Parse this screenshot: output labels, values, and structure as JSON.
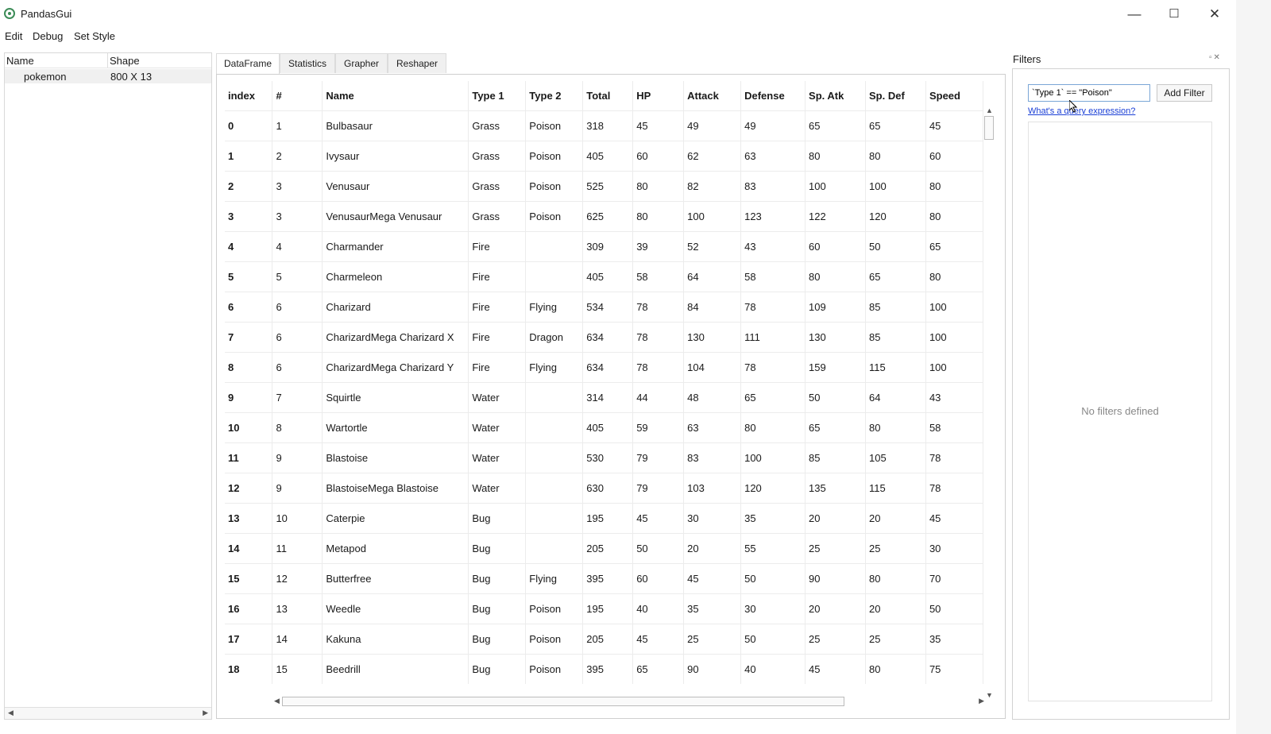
{
  "window": {
    "title": "PandasGui",
    "minimize": "—",
    "maximize": "☐",
    "close": "✕"
  },
  "menu": [
    "Edit",
    "Debug",
    "Set Style"
  ],
  "datasets": {
    "headers": [
      "Name",
      "Shape"
    ],
    "rows": [
      {
        "name": "pokemon",
        "shape": "800 X 13"
      }
    ]
  },
  "tabs": [
    "DataFrame",
    "Statistics",
    "Grapher",
    "Reshaper"
  ],
  "table": {
    "columns": [
      "index",
      "#",
      "Name",
      "Type 1",
      "Type 2",
      "Total",
      "HP",
      "Attack",
      "Defense",
      "Sp. Atk",
      "Sp. Def",
      "Speed"
    ],
    "rows": [
      [
        "0",
        "1",
        "Bulbasaur",
        "Grass",
        "Poison",
        "318",
        "45",
        "49",
        "49",
        "65",
        "65",
        "45"
      ],
      [
        "1",
        "2",
        "Ivysaur",
        "Grass",
        "Poison",
        "405",
        "60",
        "62",
        "63",
        "80",
        "80",
        "60"
      ],
      [
        "2",
        "3",
        "Venusaur",
        "Grass",
        "Poison",
        "525",
        "80",
        "82",
        "83",
        "100",
        "100",
        "80"
      ],
      [
        "3",
        "3",
        "VenusaurMega Venusaur",
        "Grass",
        "Poison",
        "625",
        "80",
        "100",
        "123",
        "122",
        "120",
        "80"
      ],
      [
        "4",
        "4",
        "Charmander",
        "Fire",
        "",
        "309",
        "39",
        "52",
        "43",
        "60",
        "50",
        "65"
      ],
      [
        "5",
        "5",
        "Charmeleon",
        "Fire",
        "",
        "405",
        "58",
        "64",
        "58",
        "80",
        "65",
        "80"
      ],
      [
        "6",
        "6",
        "Charizard",
        "Fire",
        "Flying",
        "534",
        "78",
        "84",
        "78",
        "109",
        "85",
        "100"
      ],
      [
        "7",
        "6",
        "CharizardMega Charizard X",
        "Fire",
        "Dragon",
        "634",
        "78",
        "130",
        "111",
        "130",
        "85",
        "100"
      ],
      [
        "8",
        "6",
        "CharizardMega Charizard Y",
        "Fire",
        "Flying",
        "634",
        "78",
        "104",
        "78",
        "159",
        "115",
        "100"
      ],
      [
        "9",
        "7",
        "Squirtle",
        "Water",
        "",
        "314",
        "44",
        "48",
        "65",
        "50",
        "64",
        "43"
      ],
      [
        "10",
        "8",
        "Wartortle",
        "Water",
        "",
        "405",
        "59",
        "63",
        "80",
        "65",
        "80",
        "58"
      ],
      [
        "11",
        "9",
        "Blastoise",
        "Water",
        "",
        "530",
        "79",
        "83",
        "100",
        "85",
        "105",
        "78"
      ],
      [
        "12",
        "9",
        "BlastoiseMega Blastoise",
        "Water",
        "",
        "630",
        "79",
        "103",
        "120",
        "135",
        "115",
        "78"
      ],
      [
        "13",
        "10",
        "Caterpie",
        "Bug",
        "",
        "195",
        "45",
        "30",
        "35",
        "20",
        "20",
        "45"
      ],
      [
        "14",
        "11",
        "Metapod",
        "Bug",
        "",
        "205",
        "50",
        "20",
        "55",
        "25",
        "25",
        "30"
      ],
      [
        "15",
        "12",
        "Butterfree",
        "Bug",
        "Flying",
        "395",
        "60",
        "45",
        "50",
        "90",
        "80",
        "70"
      ],
      [
        "16",
        "13",
        "Weedle",
        "Bug",
        "Poison",
        "195",
        "40",
        "35",
        "30",
        "20",
        "20",
        "50"
      ],
      [
        "17",
        "14",
        "Kakuna",
        "Bug",
        "Poison",
        "205",
        "45",
        "25",
        "50",
        "25",
        "25",
        "35"
      ],
      [
        "18",
        "15",
        "Beedrill",
        "Bug",
        "Poison",
        "395",
        "65",
        "90",
        "40",
        "45",
        "80",
        "75"
      ]
    ]
  },
  "filters": {
    "title": "Filters",
    "query_value": "`Type 1` == \"Poison\"",
    "add_label": "Add Filter",
    "help_link": "What's a query expression?",
    "empty_message": "No filters defined"
  }
}
